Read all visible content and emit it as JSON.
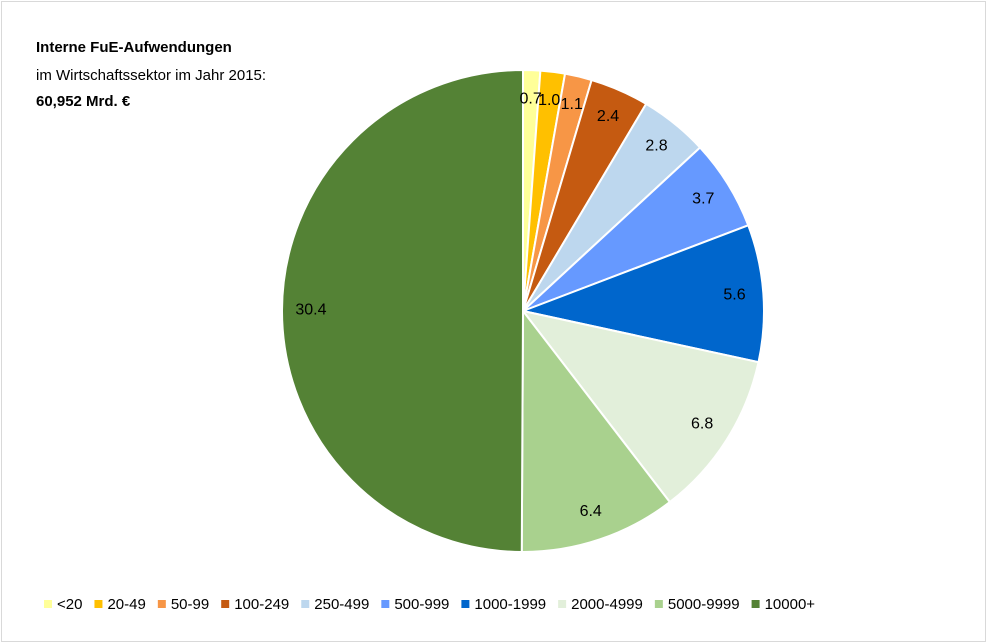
{
  "chart_data": {
    "type": "pie",
    "title": "Interne FuE-Aufwendungen",
    "subtitle": "im Wirtschaftssektor im Jahr 2015:",
    "annotation": "60,952 Mrd. €",
    "categories": [
      "<20",
      "20-49",
      "50-99",
      "100-249",
      "250-499",
      "500-999",
      "1000-1999",
      "2000-4999",
      "5000-9999",
      "10000+"
    ],
    "values": [
      0.7,
      1.0,
      1.1,
      2.4,
      2.8,
      3.7,
      5.6,
      6.8,
      6.4,
      30.4
    ],
    "value_labels": [
      "0.7",
      "1.0",
      "1.1",
      "2.4",
      "2.8",
      "3.7",
      "5.6",
      "6.8",
      "6.4",
      "30.4"
    ],
    "colors": [
      "#ffff99",
      "#ffc000",
      "#f79646",
      "#c55a11",
      "#bdd7ee",
      "#6699ff",
      "#0066cc",
      "#e2efda",
      "#a9d18e",
      "#548235"
    ],
    "legend": "bottom"
  }
}
